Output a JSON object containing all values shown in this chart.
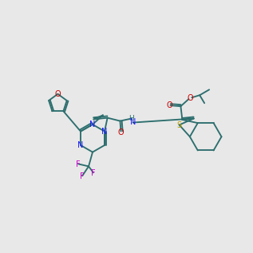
{
  "bg": "#e8e8e8",
  "bc": "#2d6e6e",
  "Nc": "#1a1aff",
  "Oc": "#cc0000",
  "Sc": "#b8a000",
  "Fc": "#cc00cc",
  "fs": 7.0,
  "lw": 1.35
}
